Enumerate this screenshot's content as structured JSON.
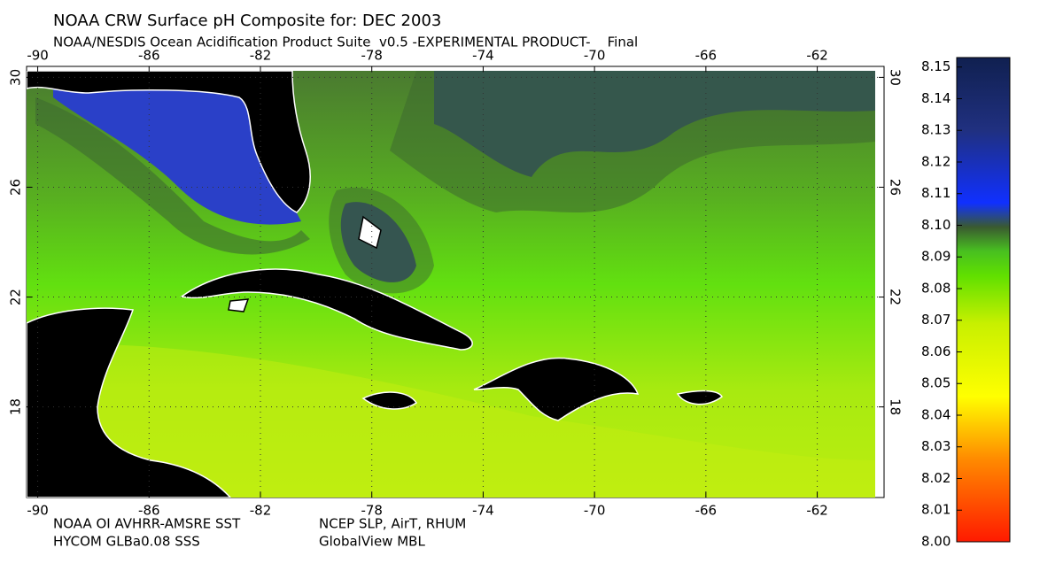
{
  "map": {
    "title": "NOAA CRW Surface pH Composite for: DEC 2003",
    "subtitle": "NOAA/NESDIS Ocean Acidification Product Suite  v0.5 -EXPERIMENTAL PRODUCT-    Final",
    "xlim": [
      -90.4,
      -59.6
    ],
    "ylim": [
      14.7,
      30.4
    ],
    "xticks": [
      -90,
      -86,
      -82,
      -78,
      -74,
      -70,
      -66,
      -62
    ],
    "yticks": [
      30,
      26,
      22,
      18
    ],
    "grid": true,
    "credits": [
      "NOAA OI AVHRR-AMSRE SST",
      "NCEP SLP, AirT, RHUM",
      "HYCOM GLBa0.08 SSS",
      "GlobalView MBL"
    ]
  },
  "colorbar": {
    "lim": [
      8.0,
      8.153
    ],
    "ticks": [
      {
        "value": 8.0,
        "label": "8.00"
      },
      {
        "value": 8.01,
        "label": "8.01"
      },
      {
        "value": 8.02,
        "label": "8.02"
      },
      {
        "value": 8.03,
        "label": "8.03"
      },
      {
        "value": 8.04,
        "label": "8.04"
      },
      {
        "value": 8.05,
        "label": "8.05"
      },
      {
        "value": 8.06,
        "label": "8.06"
      },
      {
        "value": 8.07,
        "label": "8.07"
      },
      {
        "value": 8.08,
        "label": "8.08"
      },
      {
        "value": 8.09,
        "label": "8.09"
      },
      {
        "value": 8.1,
        "label": "8.10"
      },
      {
        "value": 8.11,
        "label": "8.11"
      },
      {
        "value": 8.12,
        "label": "8.12"
      },
      {
        "value": 8.13,
        "label": "8.13"
      },
      {
        "value": 8.14,
        "label": "8.14"
      },
      {
        "value": 8.15,
        "label": "8.15"
      }
    ]
  }
}
